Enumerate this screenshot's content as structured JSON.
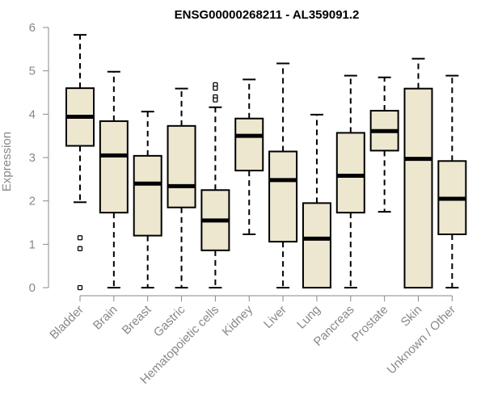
{
  "chart_data": {
    "type": "boxplot",
    "title": "ENSG00000268211 - AL359091.2",
    "xlabel": "",
    "ylabel": "Expression",
    "ylim": [
      0,
      6
    ],
    "yticks": [
      "0",
      "1",
      "2",
      "3",
      "4",
      "5",
      "6"
    ],
    "categories": [
      "Bladder",
      "Brain",
      "Breast",
      "Gastric",
      "Hematopoietic cells",
      "Kidney",
      "Liver",
      "Lung",
      "Pancreas",
      "Prostate",
      "Skin",
      "Unknown / Other"
    ],
    "boxes": [
      {
        "category": "Bladder",
        "whisker_low": 1.97,
        "q1": 3.27,
        "median": 3.94,
        "q3": 4.6,
        "whisker_high": 5.83,
        "outliers": [
          1.15,
          0.9,
          0.0
        ]
      },
      {
        "category": "Brain",
        "whisker_low": 0.0,
        "q1": 1.73,
        "median": 3.05,
        "q3": 3.84,
        "whisker_high": 4.98,
        "outliers": []
      },
      {
        "category": "Breast",
        "whisker_low": 0.0,
        "q1": 1.2,
        "median": 2.4,
        "q3": 3.04,
        "whisker_high": 4.06,
        "outliers": []
      },
      {
        "category": "Gastric",
        "whisker_low": 0.0,
        "q1": 1.85,
        "median": 2.34,
        "q3": 3.73,
        "whisker_high": 4.59,
        "outliers": []
      },
      {
        "category": "Hematopoietic cells",
        "whisker_low": 0.0,
        "q1": 0.86,
        "median": 1.55,
        "q3": 2.25,
        "whisker_high": 4.16,
        "outliers": [
          4.68,
          4.6,
          4.4,
          4.33
        ]
      },
      {
        "category": "Kidney",
        "whisker_low": 1.23,
        "q1": 2.7,
        "median": 3.5,
        "q3": 3.9,
        "whisker_high": 4.8,
        "outliers": []
      },
      {
        "category": "Liver",
        "whisker_low": 0.0,
        "q1": 1.06,
        "median": 2.48,
        "q3": 3.14,
        "whisker_high": 5.17,
        "outliers": []
      },
      {
        "category": "Lung",
        "whisker_low": 0.0,
        "q1": 0.0,
        "median": 1.13,
        "q3": 1.95,
        "whisker_high": 3.99,
        "outliers": []
      },
      {
        "category": "Pancreas",
        "whisker_low": 0.0,
        "q1": 1.73,
        "median": 2.58,
        "q3": 3.57,
        "whisker_high": 4.89,
        "outliers": []
      },
      {
        "category": "Prostate",
        "whisker_low": 1.75,
        "q1": 3.16,
        "median": 3.61,
        "q3": 4.08,
        "whisker_high": 4.85,
        "outliers": []
      },
      {
        "category": "Skin",
        "whisker_low": 0.0,
        "q1": 0.0,
        "median": 2.97,
        "q3": 4.59,
        "whisker_high": 5.28,
        "outliers": []
      },
      {
        "category": "Unknown / Other",
        "whisker_low": 0.0,
        "q1": 1.23,
        "median": 2.05,
        "q3": 2.92,
        "whisker_high": 4.89,
        "outliers": []
      }
    ],
    "box_fill": "#ede7cf",
    "stroke": "#000000",
    "axis_color": "#888888",
    "grid": false
  }
}
